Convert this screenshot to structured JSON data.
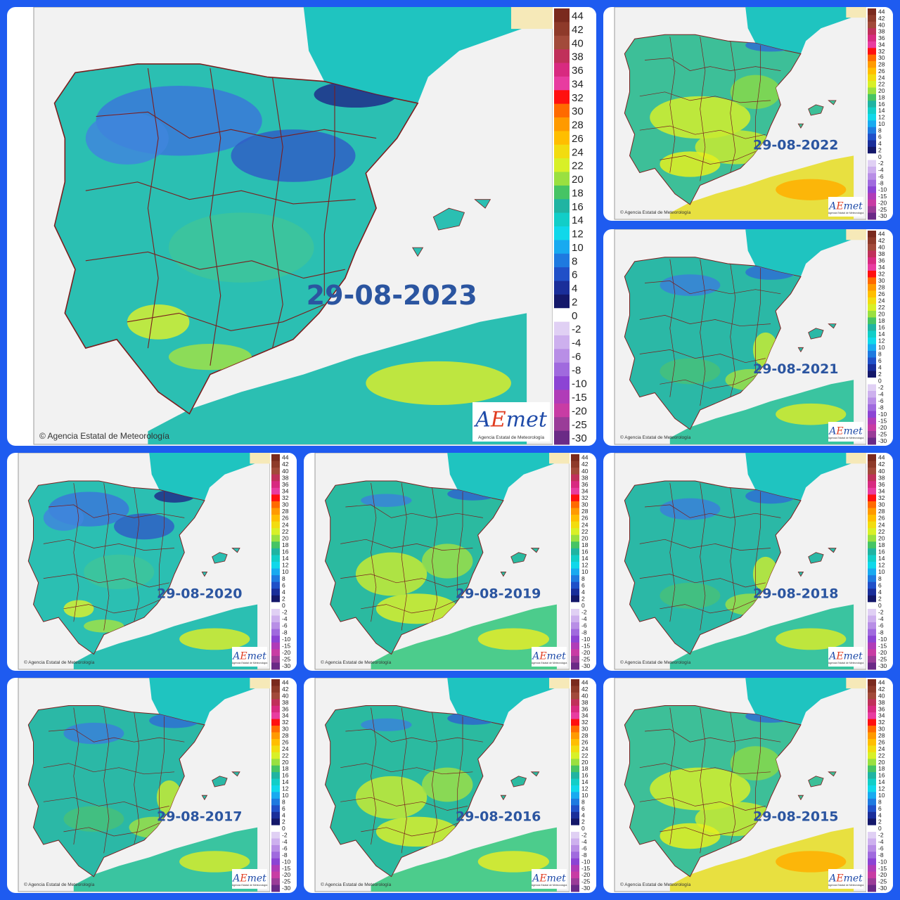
{
  "copyright": "Agencia Estatal de Meteorología",
  "logo": {
    "a": "A",
    "e": "E",
    "met": "met",
    "subtitle": "Agencia Estatal de Meteorología"
  },
  "legend": {
    "ticks": [
      "44",
      "42",
      "40",
      "38",
      "36",
      "34",
      "32",
      "30",
      "28",
      "26",
      "24",
      "22",
      "20",
      "18",
      "16",
      "14",
      "12",
      "10",
      "8",
      "6",
      "4",
      "2",
      "0",
      "-2",
      "-4",
      "-6",
      "-8",
      "-10",
      "-15",
      "-20",
      "-25",
      "-30"
    ],
    "colors": [
      "#7a2a1e",
      "#8e3a2a",
      "#a24a3a",
      "#c0305a",
      "#d82a80",
      "#e83ca0",
      "#ff1010",
      "#ff6a00",
      "#ff9a00",
      "#ffbe00",
      "#f2dc10",
      "#d8f028",
      "#9ae040",
      "#46c464",
      "#20b4a2",
      "#12cec8",
      "#10d8ea",
      "#18aaf0",
      "#1e7ae0",
      "#2050c8",
      "#1a2e9a",
      "#14186a",
      "#ffffff",
      "#e0d0f4",
      "#cdb0ee",
      "#b88ee6",
      "#a06ade",
      "#8c44d4",
      "#b03cb8",
      "#c83ca4",
      "#9a3c98",
      "#6a2a86"
    ]
  },
  "panels": [
    {
      "date": "29-08-2023"
    },
    {
      "date": "29-08-2022"
    },
    {
      "date": "29-08-2021"
    },
    {
      "date": "29-08-2020"
    },
    {
      "date": "29-08-2019"
    },
    {
      "date": "29-08-2018"
    },
    {
      "date": "29-08-2017"
    },
    {
      "date": "29-08-2016"
    },
    {
      "date": "29-08-2015"
    }
  ]
}
